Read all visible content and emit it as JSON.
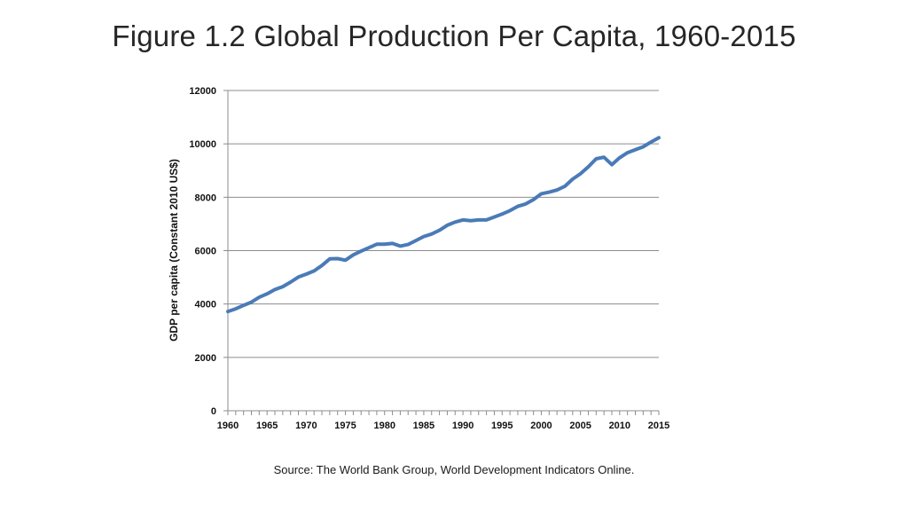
{
  "slide": {
    "title": "Figure 1.2 Global Production Per Capita, 1960-2015",
    "source": "Source: The World Bank Group, World Development Indicators Online."
  },
  "chart_data": {
    "type": "line",
    "title": "",
    "xlabel": "",
    "ylabel": "GDP per capita (Constant 2010 US$)",
    "xlim": [
      1960,
      2015
    ],
    "ylim": [
      0,
      12000
    ],
    "x_ticks": [
      1960,
      1965,
      1970,
      1975,
      1980,
      1985,
      1990,
      1995,
      2000,
      2005,
      2010,
      2015
    ],
    "y_ticks": [
      0,
      2000,
      4000,
      6000,
      8000,
      10000,
      12000
    ],
    "grid": "horizontal",
    "legend": "none",
    "series": [
      {
        "color": "#4a7bb7",
        "x": [
          1960,
          1961,
          1962,
          1963,
          1964,
          1965,
          1966,
          1967,
          1968,
          1969,
          1970,
          1971,
          1972,
          1973,
          1974,
          1975,
          1976,
          1977,
          1978,
          1979,
          1980,
          1981,
          1982,
          1983,
          1984,
          1985,
          1986,
          1987,
          1988,
          1989,
          1990,
          1991,
          1992,
          1993,
          1994,
          1995,
          1996,
          1997,
          1998,
          1999,
          2000,
          2001,
          2002,
          2003,
          2004,
          2005,
          2006,
          2007,
          2008,
          2009,
          2010,
          2011,
          2012,
          2013,
          2014,
          2015
        ],
        "values": [
          3720,
          3820,
          3950,
          4070,
          4250,
          4380,
          4540,
          4650,
          4820,
          5010,
          5120,
          5240,
          5440,
          5690,
          5700,
          5640,
          5840,
          5980,
          6110,
          6240,
          6240,
          6270,
          6170,
          6230,
          6380,
          6530,
          6620,
          6760,
          6950,
          7070,
          7150,
          7120,
          7150,
          7150,
          7260,
          7370,
          7500,
          7660,
          7750,
          7910,
          8130,
          8190,
          8270,
          8410,
          8680,
          8880,
          9140,
          9440,
          9500,
          9220,
          9480,
          9670,
          9780,
          9890,
          10070,
          10230
        ]
      }
    ]
  }
}
